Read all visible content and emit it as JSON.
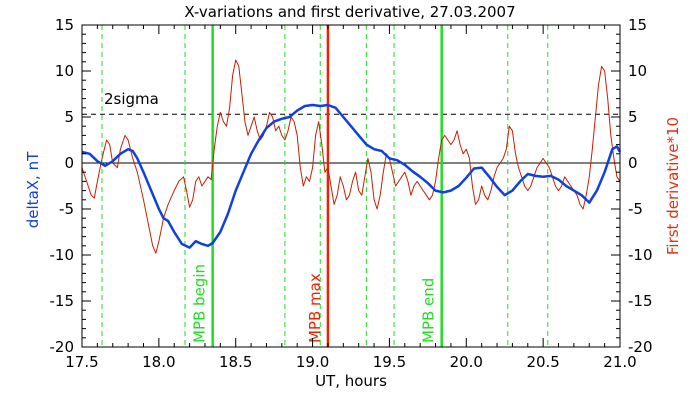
{
  "chart_data": {
    "type": "line",
    "title": "X-variations and first derivative, 27.03.2007",
    "xlabel": "UT, hours",
    "ylabel_left": "deltaX, nT",
    "ylabel_right": "First derivative*10",
    "xlim": [
      17.5,
      21.0
    ],
    "ylim": [
      -20,
      15
    ],
    "x_ticks": [
      "17.5",
      "18.0",
      "18.5",
      "19.0",
      "19.5",
      "20.0",
      "20.5",
      "21.0"
    ],
    "y_ticks": [
      "15",
      "10",
      "5",
      "0",
      "-5",
      "-10",
      "-15",
      "-20"
    ],
    "threshold": {
      "label": "2sigma",
      "value": 5.3
    },
    "markers": [
      {
        "label": "MPB begin",
        "x": 18.35,
        "color": "#22dd22"
      },
      {
        "label": "MPB max",
        "x": 19.1,
        "color": "#ee2200"
      },
      {
        "label": "MPB end",
        "x": 19.84,
        "color": "#22dd22"
      }
    ],
    "dashed_lines_x": [
      17.63,
      18.17,
      18.82,
      19.05,
      19.35,
      19.53,
      20.27,
      20.53
    ],
    "series": [
      {
        "axis": "left",
        "color": "#1040dd",
        "points": [
          [
            17.5,
            1.2
          ],
          [
            17.55,
            1.0
          ],
          [
            17.6,
            0.2
          ],
          [
            17.65,
            -0.3
          ],
          [
            17.7,
            0.2
          ],
          [
            17.75,
            1.0
          ],
          [
            17.8,
            1.5
          ],
          [
            17.83,
            1.3
          ],
          [
            17.86,
            0.5
          ],
          [
            17.9,
            -1.0
          ],
          [
            17.95,
            -3.0
          ],
          [
            18.0,
            -5.0
          ],
          [
            18.03,
            -6.0
          ],
          [
            18.06,
            -6.3
          ],
          [
            18.1,
            -7.5
          ],
          [
            18.15,
            -8.8
          ],
          [
            18.2,
            -9.2
          ],
          [
            18.24,
            -8.5
          ],
          [
            18.28,
            -8.8
          ],
          [
            18.32,
            -9.0
          ],
          [
            18.35,
            -8.7
          ],
          [
            18.4,
            -7.5
          ],
          [
            18.45,
            -5.5
          ],
          [
            18.5,
            -3.0
          ],
          [
            18.55,
            -1.0
          ],
          [
            18.6,
            1.0
          ],
          [
            18.65,
            2.5
          ],
          [
            18.7,
            3.8
          ],
          [
            18.75,
            4.5
          ],
          [
            18.8,
            4.8
          ],
          [
            18.85,
            5.0
          ],
          [
            18.9,
            5.7
          ],
          [
            18.95,
            6.2
          ],
          [
            19.0,
            6.3
          ],
          [
            19.05,
            6.2
          ],
          [
            19.1,
            6.3
          ],
          [
            19.15,
            6.0
          ],
          [
            19.2,
            5.0
          ],
          [
            19.25,
            4.0
          ],
          [
            19.3,
            3.0
          ],
          [
            19.35,
            2.0
          ],
          [
            19.4,
            1.5
          ],
          [
            19.45,
            1.3
          ],
          [
            19.5,
            0.5
          ],
          [
            19.55,
            0.3
          ],
          [
            19.6,
            -0.2
          ],
          [
            19.65,
            -0.9
          ],
          [
            19.7,
            -1.5
          ],
          [
            19.75,
            -2.2
          ],
          [
            19.8,
            -3.0
          ],
          [
            19.85,
            -3.2
          ],
          [
            19.9,
            -3.0
          ],
          [
            19.95,
            -2.5
          ],
          [
            20.0,
            -1.6
          ],
          [
            20.05,
            -0.6
          ],
          [
            20.1,
            -0.5
          ],
          [
            20.15,
            -1.5
          ],
          [
            20.2,
            -2.6
          ],
          [
            20.25,
            -3.5
          ],
          [
            20.3,
            -3.0
          ],
          [
            20.35,
            -2.0
          ],
          [
            20.4,
            -1.2
          ],
          [
            20.45,
            -1.4
          ],
          [
            20.5,
            -1.5
          ],
          [
            20.55,
            -1.4
          ],
          [
            20.6,
            -1.8
          ],
          [
            20.65,
            -2.5
          ],
          [
            20.7,
            -3.0
          ],
          [
            20.75,
            -3.5
          ],
          [
            20.8,
            -4.3
          ],
          [
            20.85,
            -3.0
          ],
          [
            20.9,
            -1.0
          ],
          [
            20.95,
            1.5
          ],
          [
            20.98,
            1.8
          ],
          [
            21.0,
            1.2
          ]
        ]
      },
      {
        "axis": "right",
        "color": "#c81e00",
        "points": [
          [
            17.5,
            -0.5
          ],
          [
            17.53,
            -2.0
          ],
          [
            17.56,
            -3.5
          ],
          [
            17.58,
            -3.8
          ],
          [
            17.6,
            -2.0
          ],
          [
            17.63,
            0.5
          ],
          [
            17.66,
            2.5
          ],
          [
            17.68,
            2.0
          ],
          [
            17.7,
            0.0
          ],
          [
            17.73,
            -0.5
          ],
          [
            17.75,
            1.5
          ],
          [
            17.78,
            3.0
          ],
          [
            17.8,
            2.5
          ],
          [
            17.83,
            0.5
          ],
          [
            17.86,
            -1.0
          ],
          [
            17.9,
            -4.0
          ],
          [
            17.93,
            -6.5
          ],
          [
            17.96,
            -9.0
          ],
          [
            17.98,
            -9.8
          ],
          [
            18.0,
            -8.5
          ],
          [
            18.03,
            -6.0
          ],
          [
            18.06,
            -4.5
          ],
          [
            18.1,
            -3.0
          ],
          [
            18.13,
            -2.0
          ],
          [
            18.16,
            -1.5
          ],
          [
            18.18,
            -3.0
          ],
          [
            18.2,
            -4.8
          ],
          [
            18.22,
            -4.0
          ],
          [
            18.24,
            -2.0
          ],
          [
            18.26,
            -1.5
          ],
          [
            18.28,
            -2.5
          ],
          [
            18.3,
            -2.0
          ],
          [
            18.32,
            -1.5
          ],
          [
            18.34,
            -1.8
          ],
          [
            18.36,
            1.5
          ],
          [
            18.38,
            4.0
          ],
          [
            18.4,
            5.5
          ],
          [
            18.42,
            4.5
          ],
          [
            18.44,
            4.0
          ],
          [
            18.46,
            6.0
          ],
          [
            18.48,
            9.5
          ],
          [
            18.5,
            11.2
          ],
          [
            18.52,
            10.5
          ],
          [
            18.54,
            7.5
          ],
          [
            18.56,
            4.5
          ],
          [
            18.58,
            3.0
          ],
          [
            18.6,
            4.0
          ],
          [
            18.62,
            5.0
          ],
          [
            18.64,
            3.5
          ],
          [
            18.66,
            2.5
          ],
          [
            18.68,
            3.0
          ],
          [
            18.7,
            4.0
          ],
          [
            18.72,
            5.5
          ],
          [
            18.74,
            5.0
          ],
          [
            18.76,
            3.5
          ],
          [
            18.78,
            4.0
          ],
          [
            18.8,
            3.0
          ],
          [
            18.82,
            2.5
          ],
          [
            18.84,
            3.5
          ],
          [
            18.86,
            5.0
          ],
          [
            18.88,
            4.5
          ],
          [
            18.9,
            3.0
          ],
          [
            18.92,
            -0.5
          ],
          [
            18.94,
            -2.5
          ],
          [
            18.96,
            -1.5
          ],
          [
            18.98,
            -2.0
          ],
          [
            19.0,
            -0.5
          ],
          [
            19.02,
            3.0
          ],
          [
            19.04,
            4.5
          ],
          [
            19.06,
            2.0
          ],
          [
            19.08,
            -1.0
          ],
          [
            19.1,
            -0.5
          ],
          [
            19.12,
            -2.5
          ],
          [
            19.14,
            -4.5
          ],
          [
            19.16,
            -3.5
          ],
          [
            19.18,
            -1.5
          ],
          [
            19.2,
            -2.5
          ],
          [
            19.22,
            -4.0
          ],
          [
            19.24,
            -3.5
          ],
          [
            19.26,
            -2.0
          ],
          [
            19.28,
            -1.0
          ],
          [
            19.3,
            -3.0
          ],
          [
            19.32,
            -3.5
          ],
          [
            19.34,
            -1.5
          ],
          [
            19.36,
            0.5
          ],
          [
            19.38,
            -1.0
          ],
          [
            19.4,
            -4.0
          ],
          [
            19.42,
            -5.0
          ],
          [
            19.44,
            -3.5
          ],
          [
            19.46,
            -1.0
          ],
          [
            19.48,
            1.0
          ],
          [
            19.5,
            0.5
          ],
          [
            19.52,
            -1.0
          ],
          [
            19.54,
            -2.5
          ],
          [
            19.56,
            -2.0
          ],
          [
            19.58,
            -1.5
          ],
          [
            19.6,
            -1.0
          ],
          [
            19.62,
            -2.0
          ],
          [
            19.64,
            -3.5
          ],
          [
            19.66,
            -2.5
          ],
          [
            19.68,
            -2.0
          ],
          [
            19.7,
            -2.5
          ],
          [
            19.72,
            -3.0
          ],
          [
            19.74,
            -3.5
          ],
          [
            19.76,
            -4.0
          ],
          [
            19.78,
            -3.5
          ],
          [
            19.8,
            -2.0
          ],
          [
            19.82,
            0.5
          ],
          [
            19.84,
            2.5
          ],
          [
            19.86,
            3.0
          ],
          [
            19.88,
            2.5
          ],
          [
            19.9,
            2.0
          ],
          [
            19.92,
            2.5
          ],
          [
            19.94,
            3.5
          ],
          [
            19.96,
            2.0
          ],
          [
            19.98,
            1.0
          ],
          [
            20.0,
            1.5
          ],
          [
            20.02,
            0.5
          ],
          [
            20.04,
            -2.5
          ],
          [
            20.06,
            -4.5
          ],
          [
            20.08,
            -4.0
          ],
          [
            20.1,
            -2.5
          ],
          [
            20.12,
            -3.5
          ],
          [
            20.14,
            -4.0
          ],
          [
            20.16,
            -3.0
          ],
          [
            20.18,
            -1.5
          ],
          [
            20.2,
            -0.5
          ],
          [
            20.22,
            0.0
          ],
          [
            20.24,
            0.5
          ],
          [
            20.26,
            1.5
          ],
          [
            20.28,
            4.0
          ],
          [
            20.3,
            3.5
          ],
          [
            20.32,
            1.0
          ],
          [
            20.34,
            -0.5
          ],
          [
            20.36,
            -1.5
          ],
          [
            20.38,
            -2.5
          ],
          [
            20.4,
            -3.0
          ],
          [
            20.42,
            -2.5
          ],
          [
            20.44,
            -1.5
          ],
          [
            20.46,
            -0.5
          ],
          [
            20.48,
            0.0
          ],
          [
            20.5,
            0.5
          ],
          [
            20.52,
            0.0
          ],
          [
            20.54,
            -0.5
          ],
          [
            20.56,
            -1.5
          ],
          [
            20.58,
            -2.5
          ],
          [
            20.6,
            -3.0
          ],
          [
            20.62,
            -2.5
          ],
          [
            20.64,
            -1.5
          ],
          [
            20.66,
            -2.0
          ],
          [
            20.68,
            -2.5
          ],
          [
            20.7,
            -3.0
          ],
          [
            20.72,
            -3.5
          ],
          [
            20.74,
            -4.5
          ],
          [
            20.76,
            -5.0
          ],
          [
            20.78,
            -3.5
          ],
          [
            20.8,
            -1.5
          ],
          [
            20.82,
            1.5
          ],
          [
            20.84,
            5.0
          ],
          [
            20.86,
            8.5
          ],
          [
            20.88,
            10.5
          ],
          [
            20.9,
            10.0
          ],
          [
            20.92,
            7.0
          ],
          [
            20.94,
            3.0
          ],
          [
            20.96,
            0.5
          ],
          [
            20.98,
            -1.5
          ],
          [
            21.0,
            -2.0
          ]
        ]
      }
    ]
  }
}
